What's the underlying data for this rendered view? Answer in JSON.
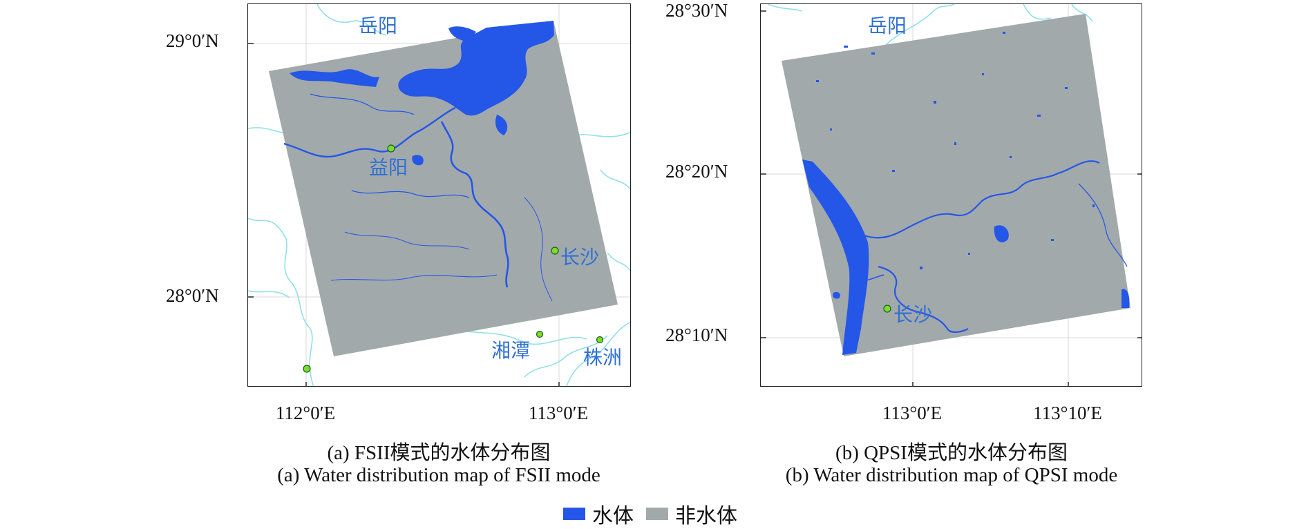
{
  "colors": {
    "water": "#2456e8",
    "non_water": "#a2a9ab",
    "river_outline": "#8fe0e8",
    "city_label": "#2f6fd6",
    "marker_fill": "#7ddc2a"
  },
  "map_a": {
    "lat_labels": [
      "29°0′N",
      "28°0′N"
    ],
    "lon_labels": [
      "112°0′E",
      "113°0′E"
    ],
    "cities": [
      "岳阳",
      "益阳",
      "长沙",
      "湘潭",
      "株洲"
    ],
    "caption_cn": "(a) FSII模式的水体分布图",
    "caption_en": "(a) Water distribution map of FSII mode"
  },
  "map_b": {
    "lat_labels": [
      "28°30′N",
      "28°20′N",
      "28°10′N"
    ],
    "lon_labels": [
      "113°0′E",
      "113°10′E"
    ],
    "cities": [
      "岳阳",
      "长沙"
    ],
    "caption_cn": "(b) QPSI模式的水体分布图",
    "caption_en": "(b) Water distribution map of QPSI mode"
  },
  "legend": {
    "items": [
      {
        "label": "水体",
        "color_key": "water"
      },
      {
        "label": "非水体",
        "color_key": "non_water"
      }
    ]
  }
}
